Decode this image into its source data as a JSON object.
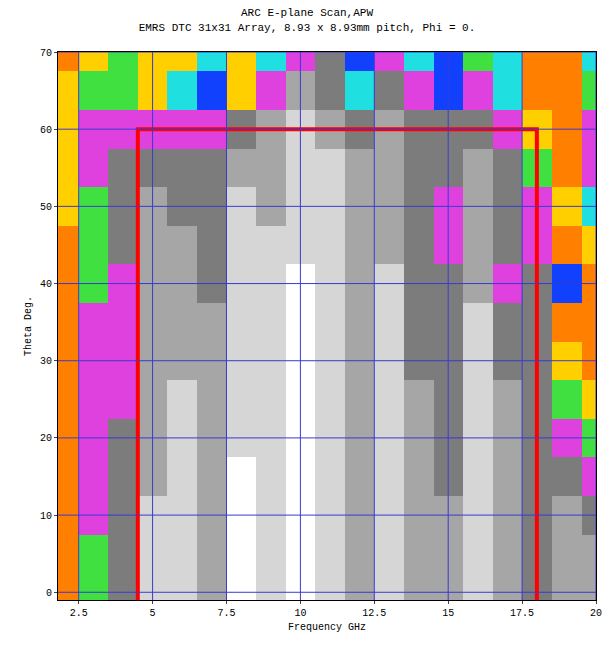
{
  "chart_data": {
    "type": "heatmap",
    "title": [
      "ARC E-plane Scan,APW",
      "EMRS DTC 31x31 Array, 8.93 x 8.93mm pitch, Phi = 0."
    ],
    "x_label": "Frequency GHz",
    "y_label": "Theta Deg.",
    "x": [
      2,
      3,
      4,
      5,
      6,
      7,
      8,
      9,
      10,
      11,
      12,
      13,
      14,
      15,
      16,
      17,
      18,
      19,
      20
    ],
    "y": [
      0,
      5,
      10,
      15,
      20,
      25,
      30,
      35,
      40,
      45,
      50,
      55,
      60,
      65,
      70
    ],
    "cells": [
      [
        9,
        5,
        3,
        1,
        1,
        2,
        0,
        1,
        0,
        1,
        2,
        1,
        2,
        2,
        1,
        2,
        3,
        2,
        2
      ],
      [
        9,
        5,
        3,
        1,
        1,
        2,
        0,
        1,
        0,
        1,
        2,
        1,
        2,
        2,
        1,
        2,
        3,
        2,
        2
      ],
      [
        9,
        4,
        3,
        1,
        1,
        2,
        0,
        1,
        0,
        1,
        2,
        1,
        2,
        2,
        1,
        2,
        3,
        2,
        3
      ],
      [
        9,
        4,
        3,
        2,
        1,
        2,
        0,
        1,
        0,
        1,
        2,
        1,
        2,
        3,
        1,
        2,
        3,
        3,
        4
      ],
      [
        9,
        4,
        3,
        2,
        1,
        2,
        1,
        1,
        0,
        1,
        2,
        1,
        2,
        3,
        1,
        2,
        3,
        4,
        5
      ],
      [
        9,
        4,
        4,
        2,
        1,
        2,
        1,
        1,
        0,
        1,
        2,
        1,
        2,
        3,
        1,
        2,
        3,
        5,
        8
      ],
      [
        9,
        4,
        4,
        2,
        2,
        2,
        1,
        1,
        0,
        1,
        2,
        1,
        3,
        3,
        1,
        3,
        3,
        8,
        9
      ],
      [
        9,
        4,
        4,
        2,
        2,
        2,
        1,
        1,
        0,
        1,
        2,
        1,
        3,
        3,
        1,
        3,
        3,
        9,
        9
      ],
      [
        9,
        5,
        4,
        2,
        2,
        3,
        1,
        1,
        0,
        1,
        2,
        1,
        3,
        3,
        2,
        4,
        3,
        7,
        9
      ],
      [
        9,
        5,
        3,
        2,
        2,
        3,
        1,
        1,
        1,
        1,
        2,
        2,
        3,
        4,
        2,
        3,
        4,
        9,
        8
      ],
      [
        8,
        5,
        3,
        2,
        3,
        3,
        1,
        2,
        1,
        1,
        2,
        2,
        3,
        4,
        2,
        3,
        4,
        8,
        6
      ],
      [
        8,
        4,
        3,
        3,
        3,
        3,
        2,
        2,
        1,
        1,
        2,
        2,
        3,
        3,
        2,
        3,
        5,
        9,
        4
      ],
      [
        8,
        4,
        4,
        4,
        4,
        4,
        3,
        2,
        1,
        2,
        3,
        2,
        3,
        3,
        3,
        4,
        8,
        9,
        4
      ],
      [
        8,
        5,
        5,
        8,
        6,
        7,
        8,
        4,
        2,
        3,
        6,
        3,
        4,
        7,
        4,
        6,
        9,
        9,
        5
      ],
      [
        9,
        8,
        5,
        8,
        8,
        6,
        8,
        6,
        4,
        3,
        7,
        4,
        6,
        7,
        5,
        6,
        9,
        9,
        6
      ]
    ],
    "zlim": [
      0,
      9
    ],
    "xlim": [
      1.8,
      20
    ],
    "xticks": [
      2.5,
      5,
      7.5,
      10,
      12.5,
      15,
      17.5,
      20
    ],
    "ylim": [
      -1,
      70
    ],
    "yticks": [
      0,
      10,
      20,
      30,
      40,
      50,
      60,
      70
    ],
    "grid": true,
    "outline": {
      "x": [
        4.5,
        4.5,
        18,
        18
      ],
      "y": [
        -1,
        60,
        60,
        -1
      ],
      "color": "#ff0000"
    }
  }
}
